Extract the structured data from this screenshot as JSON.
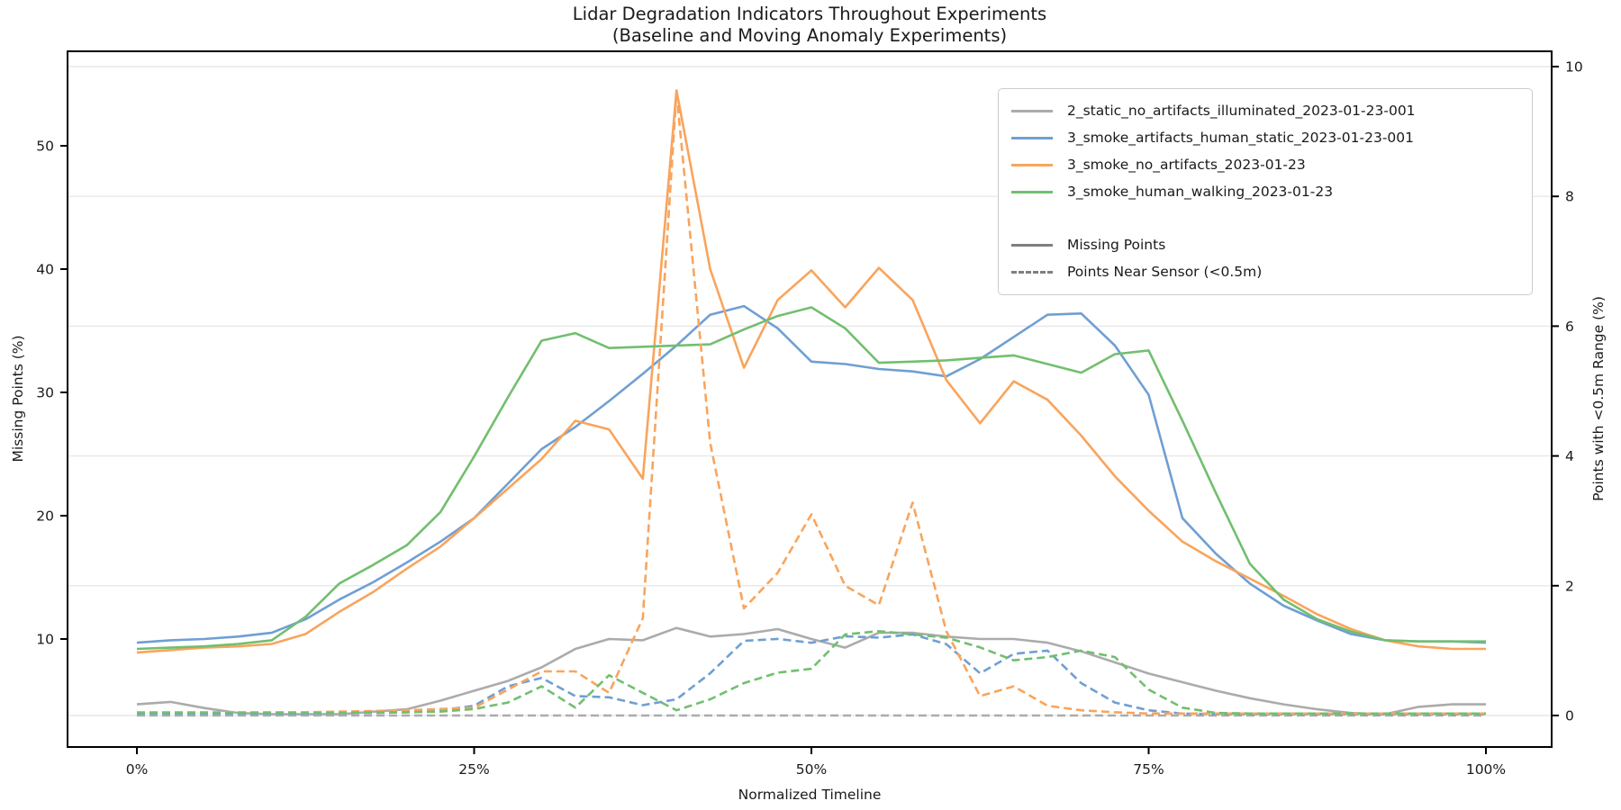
{
  "chart": {
    "title_line1": "Lidar Degradation Indicators Throughout Experiments",
    "title_line2": "(Baseline and Moving Anomaly Experiments)",
    "xlabel": "Normalized Timeline",
    "ylabel_left": "Missing Points (%)",
    "ylabel_right": "Points with <0.5m Range (%)"
  },
  "chart_data": {
    "type": "line",
    "title": "Lidar Degradation Indicators Throughout Experiments (Baseline and Moving Anomaly Experiments)",
    "xlabel": "Normalized Timeline",
    "ylabel_left": "Missing Points (%)",
    "ylabel_right": "Points with <0.5m Range (%)",
    "x_axis": {
      "tick_values": [
        0,
        25,
        50,
        75,
        100
      ],
      "tick_labels": [
        "0%",
        "25%",
        "50%",
        "75%",
        "100%"
      ],
      "range_percent": [
        -5.1,
        104.9
      ]
    },
    "y_left_axis": {
      "tick_values": [
        10,
        20,
        30,
        40,
        50
      ],
      "tick_labels": [
        "10",
        "20",
        "30",
        "40",
        "50"
      ],
      "range": [
        1.2,
        57.7
      ]
    },
    "y_right_axis": {
      "tick_values": [
        0,
        2,
        4,
        6,
        8,
        10
      ],
      "tick_labels": [
        "0",
        "2",
        "4",
        "6",
        "8",
        "10"
      ],
      "range": [
        -0.5,
        10.2
      ]
    },
    "grid": {
      "show": true,
      "follows": "right-axis-ticks"
    },
    "legend": {
      "position": "upper-right",
      "series_entries": [
        {
          "label": "2_static_no_artifacts_illuminated_2023-01-23-001",
          "color": "#ababab"
        },
        {
          "label": "3_smoke_artifacts_human_static_2023-01-23-001",
          "color": "#6f9fd3"
        },
        {
          "label": "3_smoke_no_artifacts_2023-01-23",
          "color": "#f9a45c"
        },
        {
          "label": "3_smoke_human_walking_2023-01-23",
          "color": "#71bf6f"
        }
      ],
      "style_entries": [
        {
          "label": "Missing Points",
          "style": "solid"
        },
        {
          "label": "Points Near Sensor (<0.5m)",
          "style": "dashed"
        }
      ]
    },
    "x_percent": [
      0,
      2.5,
      5,
      7.5,
      10,
      12.5,
      15,
      17.5,
      20,
      22.5,
      25,
      27.5,
      30,
      32.5,
      35,
      37.5,
      40,
      42.5,
      45,
      47.5,
      50,
      52.5,
      55,
      57.5,
      60,
      62.5,
      65,
      67.5,
      70,
      72.5,
      75,
      77.5,
      80,
      82.5,
      85,
      87.5,
      90,
      92.5,
      95,
      97.5,
      100
    ],
    "series": [
      {
        "name": "2_static_no_artifacts_illuminated_2023-01-23-001",
        "metric": "Missing Points",
        "axis": "left",
        "style": "solid",
        "color": "#ababab",
        "values": [
          4.7,
          4.9,
          4.4,
          4.0,
          3.9,
          3.9,
          3.9,
          4.1,
          4.3,
          5.0,
          5.8,
          6.6,
          7.7,
          9.2,
          10.0,
          9.9,
          10.9,
          10.2,
          10.4,
          10.8,
          10.0,
          9.3,
          10.5,
          10.5,
          10.2,
          10.0,
          10.0,
          9.7,
          9.0,
          8.1,
          7.2,
          6.5,
          5.8,
          5.2,
          4.7,
          4.3,
          4.0,
          3.9,
          4.5,
          4.7,
          4.7
        ]
      },
      {
        "name": "3_smoke_artifacts_human_static_2023-01-23-001",
        "metric": "Missing Points",
        "axis": "left",
        "style": "solid",
        "color": "#6f9fd3",
        "values": [
          9.7,
          9.9,
          10.0,
          10.2,
          10.5,
          11.6,
          13.2,
          14.6,
          16.2,
          17.9,
          19.8,
          22.6,
          25.4,
          27.2,
          29.3,
          31.5,
          33.8,
          36.3,
          37.0,
          35.2,
          32.5,
          32.3,
          31.9,
          31.7,
          31.3,
          32.7,
          34.5,
          36.3,
          36.4,
          33.8,
          29.8,
          19.8,
          16.9,
          14.5,
          12.7,
          11.5,
          10.4,
          9.9,
          9.8,
          9.8,
          9.7
        ]
      },
      {
        "name": "3_smoke_no_artifacts_2023-01-23",
        "metric": "Missing Points",
        "axis": "left",
        "style": "solid",
        "color": "#f9a45c",
        "values": [
          8.9,
          9.1,
          9.3,
          9.4,
          9.6,
          10.4,
          12.2,
          13.8,
          15.7,
          17.5,
          19.8,
          22.2,
          24.6,
          27.7,
          27.0,
          23.0,
          54.5,
          40.0,
          32.0,
          37.5,
          39.9,
          36.9,
          40.1,
          37.5,
          31.0,
          27.5,
          30.9,
          29.4,
          26.5,
          23.2,
          20.4,
          17.9,
          16.3,
          14.9,
          13.5,
          12.0,
          10.8,
          9.9,
          9.4,
          9.2,
          9.2
        ]
      },
      {
        "name": "3_smoke_human_walking_2023-01-23",
        "metric": "Missing Points",
        "axis": "left",
        "style": "solid",
        "color": "#71bf6f",
        "values": [
          9.2,
          9.3,
          9.4,
          9.6,
          9.9,
          11.8,
          14.5,
          16.0,
          17.6,
          20.3,
          24.8,
          29.6,
          34.2,
          34.8,
          33.6,
          33.7,
          33.8,
          33.9,
          35.1,
          36.2,
          36.9,
          35.2,
          32.4,
          32.5,
          32.6,
          32.8,
          33.0,
          32.3,
          31.6,
          33.1,
          33.4,
          27.7,
          21.8,
          16.1,
          13.2,
          11.6,
          10.6,
          9.9,
          9.8,
          9.8,
          9.8
        ]
      },
      {
        "name": "2_static_no_artifacts_illuminated_2023-01-23-001",
        "metric": "Points Near Sensor (<0.5m)",
        "axis": "right",
        "style": "dashed",
        "color": "#ababab",
        "values": [
          0.0,
          0.0,
          0.0,
          0.0,
          0.0,
          0.0,
          0.0,
          0.0,
          0.0,
          0.0,
          0.0,
          0.0,
          0.0,
          0.0,
          0.0,
          0.0,
          0.0,
          0.0,
          0.0,
          0.0,
          0.0,
          0.0,
          0.0,
          0.0,
          0.0,
          0.0,
          0.0,
          0.0,
          0.0,
          0.0,
          0.0,
          0.0,
          0.0,
          0.0,
          0.0,
          0.0,
          0.0,
          0.0,
          0.0,
          0.0,
          0.0
        ]
      },
      {
        "name": "3_smoke_artifacts_human_static_2023-01-23-001",
        "metric": "Points Near Sensor (<0.5m)",
        "axis": "right",
        "style": "dashed",
        "color": "#6f9fd3",
        "values": [
          0.03,
          0.03,
          0.03,
          0.03,
          0.03,
          0.03,
          0.04,
          0.04,
          0.05,
          0.08,
          0.15,
          0.45,
          0.58,
          0.3,
          0.28,
          0.16,
          0.25,
          0.65,
          1.15,
          1.18,
          1.12,
          1.22,
          1.2,
          1.25,
          1.1,
          0.65,
          0.95,
          1.0,
          0.5,
          0.2,
          0.08,
          0.03,
          0.02,
          0.02,
          0.02,
          0.02,
          0.02,
          0.02,
          0.02,
          0.02,
          0.02
        ]
      },
      {
        "name": "3_smoke_no_artifacts_2023-01-23",
        "metric": "Points Near Sensor (<0.5m)",
        "axis": "right",
        "style": "dashed",
        "color": "#f9a45c",
        "values": [
          0.05,
          0.05,
          0.05,
          0.05,
          0.05,
          0.05,
          0.06,
          0.07,
          0.08,
          0.1,
          0.12,
          0.4,
          0.68,
          0.68,
          0.35,
          1.5,
          9.6,
          4.2,
          1.65,
          2.2,
          3.1,
          2.0,
          1.7,
          3.28,
          1.3,
          0.3,
          0.45,
          0.15,
          0.08,
          0.05,
          0.03,
          0.03,
          0.03,
          0.03,
          0.03,
          0.03,
          0.03,
          0.03,
          0.03,
          0.03,
          0.03
        ]
      },
      {
        "name": "3_smoke_human_walking_2023-01-23",
        "metric": "Points Near Sensor (<0.5m)",
        "axis": "right",
        "style": "dashed",
        "color": "#71bf6f",
        "values": [
          0.04,
          0.04,
          0.04,
          0.04,
          0.04,
          0.04,
          0.04,
          0.05,
          0.05,
          0.06,
          0.1,
          0.2,
          0.45,
          0.12,
          0.62,
          0.35,
          0.08,
          0.25,
          0.5,
          0.66,
          0.72,
          1.25,
          1.3,
          1.25,
          1.2,
          1.05,
          0.85,
          0.9,
          1.0,
          0.9,
          0.4,
          0.12,
          0.04,
          0.03,
          0.03,
          0.03,
          0.03,
          0.03,
          0.03,
          0.03,
          0.03
        ]
      }
    ]
  }
}
